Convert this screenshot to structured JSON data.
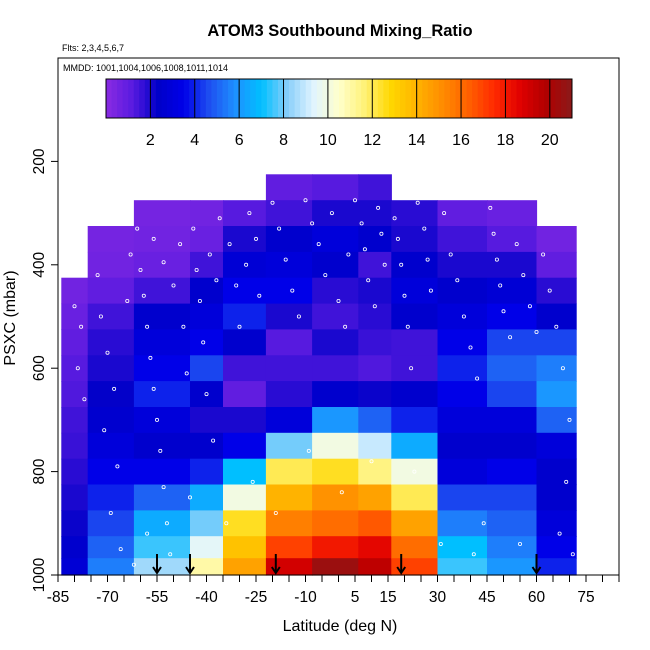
{
  "chart_data": {
    "type": "heatmap",
    "title": "ATOM3 Southbound Mixing_Ratio",
    "subtitle_flights": "Flts: 2,3,4,5,6,7",
    "subtitle_dates": "MMDD: 1001,1004,1006,1008,1011,1014",
    "xlabel": "Latitude (deg N)",
    "ylabel": "PSXC (mbar)",
    "xlim": [
      -85,
      85
    ],
    "ylim": [
      1000,
      0
    ],
    "x_ticks": [
      -85,
      -70,
      -55,
      -40,
      -25,
      -10,
      5,
      15,
      30,
      45,
      60,
      75
    ],
    "y_ticks": [
      200,
      400,
      600,
      800,
      1000
    ],
    "colorbar": {
      "min": 0,
      "max": 21,
      "ticks": [
        2,
        4,
        6,
        8,
        10,
        12,
        14,
        16,
        18,
        20
      ],
      "colors": [
        "#8a2be2",
        "#5a1be0",
        "#0000c8",
        "#0000e8",
        "#1e50f0",
        "#1e90ff",
        "#00bfff",
        "#87cefa",
        "#e0f4ff",
        "#ffffcc",
        "#fff176",
        "#ffd700",
        "#ffb300",
        "#ff8c00",
        "#ff6000",
        "#ff2a00",
        "#e00000",
        "#b00000",
        "#8b1a1a"
      ]
    },
    "pressure_levels": [
      250,
      300,
      350,
      400,
      450,
      500,
      550,
      600,
      650,
      700,
      750,
      800,
      850,
      900,
      950,
      985
    ],
    "segments": [
      {
        "lat_start": -84,
        "lat_end": -76,
        "top": 450,
        "values": [
          0.5,
          0.5,
          0.6,
          0.8,
          1.0,
          1.2,
          1.3,
          1.5,
          1.6,
          1.8,
          2.0,
          2.2,
          2.5,
          2.8
        ]
      },
      {
        "lat_start": -76,
        "lat_end": -62,
        "top": 350,
        "values": [
          0.5,
          0.5,
          0.6,
          1.0,
          1.5,
          1.8,
          2.0,
          2.3,
          2.6,
          3.0,
          3.5,
          4.0,
          4.5,
          5.0,
          5.5
        ]
      },
      {
        "lat_start": -62,
        "lat_end": -45,
        "top": 300,
        "values": [
          0.5,
          0.6,
          0.8,
          1.5,
          2.5,
          3.0,
          3.5,
          4.0,
          3.0,
          2.5,
          3.5,
          5.0,
          6.5,
          7.5,
          8.5
        ]
      },
      {
        "lat_start": -45,
        "lat_end": -35,
        "top": 300,
        "values": [
          0.6,
          0.8,
          1.5,
          2.5,
          3.0,
          3.5,
          4.5,
          2.5,
          2.0,
          2.5,
          4.0,
          6.5,
          8.0,
          9.5,
          11.0
        ]
      },
      {
        "lat_start": -35,
        "lat_end": -22,
        "top": 270,
        "values": [
          0.8,
          1.2,
          2.0,
          2.8,
          3.5,
          4.0,
          2.5,
          1.5,
          1.0,
          2.0,
          3.5,
          7.0,
          10.0,
          12.5,
          13.5,
          14.5
        ]
      },
      {
        "lat_start": -22,
        "lat_end": -8,
        "top": 240,
        "values": [
          1.0,
          1.5,
          2.5,
          3.0,
          3.5,
          2.0,
          1.2,
          1.5,
          1.8,
          3.0,
          8.0,
          12.0,
          14.0,
          15.5,
          17.0,
          19.0
        ]
      },
      {
        "lat_start": -8,
        "lat_end": 6,
        "top": 240,
        "values": [
          1.2,
          2.0,
          3.0,
          2.5,
          1.8,
          1.5,
          2.0,
          1.5,
          2.5,
          6.0,
          10.0,
          12.5,
          15.0,
          16.0,
          18.0,
          20.5
        ]
      },
      {
        "lat_start": 6,
        "lat_end": 16,
        "top": 240,
        "values": [
          1.5,
          2.0,
          2.5,
          1.5,
          2.0,
          1.8,
          1.6,
          1.3,
          2.2,
          5.0,
          9.0,
          11.5,
          14.5,
          16.5,
          18.5,
          19.5
        ]
      },
      {
        "lat_start": 16,
        "lat_end": 30,
        "top": 260,
        "values": [
          1.2,
          1.8,
          2.0,
          2.5,
          3.0,
          2.5,
          1.5,
          1.5,
          2.5,
          4.0,
          6.5,
          10.0,
          12.0,
          14.5,
          16.0,
          17.0
        ]
      },
      {
        "lat_start": 30,
        "lat_end": 45,
        "top": 280,
        "values": [
          1.0,
          1.5,
          2.0,
          2.5,
          3.0,
          3.5,
          4.0,
          3.5,
          3.0,
          2.5,
          3.0,
          4.5,
          5.5,
          7.0,
          7.5
        ]
      },
      {
        "lat_start": 45,
        "lat_end": 60,
        "top": 280,
        "values": [
          0.8,
          1.2,
          2.0,
          2.8,
          3.5,
          4.5,
          5.0,
          4.5,
          3.0,
          2.5,
          3.5,
          4.5,
          5.0,
          5.5,
          6.0
        ]
      },
      {
        "lat_start": 60,
        "lat_end": 72,
        "top": 350,
        "values": [
          0.6,
          1.0,
          1.8,
          2.5,
          4.5,
          5.5,
          6.0,
          5.0,
          3.0,
          2.5,
          2.5,
          3.0,
          3.5,
          4.0
        ]
      }
    ],
    "sample_points": [
      {
        "lat": -80,
        "p": 480
      },
      {
        "lat": -78,
        "p": 520
      },
      {
        "lat": -79,
        "p": 600
      },
      {
        "lat": -77,
        "p": 660
      },
      {
        "lat": -73,
        "p": 420
      },
      {
        "lat": -72,
        "p": 500
      },
      {
        "lat": -70,
        "p": 570
      },
      {
        "lat": -68,
        "p": 640
      },
      {
        "lat": -71,
        "p": 720
      },
      {
        "lat": -67,
        "p": 790
      },
      {
        "lat": -69,
        "p": 880
      },
      {
        "lat": -66,
        "p": 950
      },
      {
        "lat": -64,
        "p": 470
      },
      {
        "lat": -63,
        "p": 380
      },
      {
        "lat": -61,
        "p": 330
      },
      {
        "lat": -60,
        "p": 410
      },
      {
        "lat": -59,
        "p": 460
      },
      {
        "lat": -58,
        "p": 520
      },
      {
        "lat": -57,
        "p": 580
      },
      {
        "lat": -56,
        "p": 640
      },
      {
        "lat": -55,
        "p": 700
      },
      {
        "lat": -54,
        "p": 760
      },
      {
        "lat": -53,
        "p": 830
      },
      {
        "lat": -52,
        "p": 900
      },
      {
        "lat": -51,
        "p": 960
      },
      {
        "lat": -56,
        "p": 350
      },
      {
        "lat": -53,
        "p": 395
      },
      {
        "lat": -50,
        "p": 440
      },
      {
        "lat": -48,
        "p": 360
      },
      {
        "lat": -47,
        "p": 520
      },
      {
        "lat": -46,
        "p": 610
      },
      {
        "lat": -44,
        "p": 330
      },
      {
        "lat": -43,
        "p": 410
      },
      {
        "lat": -42,
        "p": 470
      },
      {
        "lat": -41,
        "p": 550
      },
      {
        "lat": -40,
        "p": 650
      },
      {
        "lat": -39,
        "p": 380
      },
      {
        "lat": -38,
        "p": 740
      },
      {
        "lat": -37,
        "p": 430
      },
      {
        "lat": -36,
        "p": 310
      },
      {
        "lat": -33,
        "p": 360
      },
      {
        "lat": -31,
        "p": 440
      },
      {
        "lat": -30,
        "p": 520
      },
      {
        "lat": -28,
        "p": 400
      },
      {
        "lat": -27,
        "p": 300
      },
      {
        "lat": -25,
        "p": 350
      },
      {
        "lat": -24,
        "p": 460
      },
      {
        "lat": -20,
        "p": 280
      },
      {
        "lat": -18,
        "p": 330
      },
      {
        "lat": -16,
        "p": 390
      },
      {
        "lat": -14,
        "p": 450
      },
      {
        "lat": -12,
        "p": 500
      },
      {
        "lat": -10,
        "p": 275
      },
      {
        "lat": -8,
        "p": 320
      },
      {
        "lat": -6,
        "p": 360
      },
      {
        "lat": -4,
        "p": 420
      },
      {
        "lat": -2,
        "p": 300
      },
      {
        "lat": 0,
        "p": 470
      },
      {
        "lat": 2,
        "p": 520
      },
      {
        "lat": 3,
        "p": 380
      },
      {
        "lat": 5,
        "p": 275
      },
      {
        "lat": 7,
        "p": 320
      },
      {
        "lat": 8,
        "p": 370
      },
      {
        "lat": 9,
        "p": 430
      },
      {
        "lat": 11,
        "p": 480
      },
      {
        "lat": 12,
        "p": 290
      },
      {
        "lat": 13,
        "p": 340
      },
      {
        "lat": 14,
        "p": 400
      },
      {
        "lat": 17,
        "p": 310
      },
      {
        "lat": 18,
        "p": 350
      },
      {
        "lat": 19,
        "p": 400
      },
      {
        "lat": 20,
        "p": 460
      },
      {
        "lat": 21,
        "p": 520
      },
      {
        "lat": 22,
        "p": 600
      },
      {
        "lat": 24,
        "p": 280
      },
      {
        "lat": 26,
        "p": 330
      },
      {
        "lat": 27,
        "p": 390
      },
      {
        "lat": 28,
        "p": 450
      },
      {
        "lat": 32,
        "p": 300
      },
      {
        "lat": 34,
        "p": 380
      },
      {
        "lat": 36,
        "p": 430
      },
      {
        "lat": 38,
        "p": 500
      },
      {
        "lat": 40,
        "p": 560
      },
      {
        "lat": 42,
        "p": 620
      },
      {
        "lat": 46,
        "p": 290
      },
      {
        "lat": 47,
        "p": 340
      },
      {
        "lat": 48,
        "p": 390
      },
      {
        "lat": 49,
        "p": 440
      },
      {
        "lat": 50,
        "p": 490
      },
      {
        "lat": 52,
        "p": 540
      },
      {
        "lat": 54,
        "p": 360
      },
      {
        "lat": 56,
        "p": 420
      },
      {
        "lat": 58,
        "p": 480
      },
      {
        "lat": 60,
        "p": 530
      },
      {
        "lat": 62,
        "p": 380
      },
      {
        "lat": 64,
        "p": 450
      },
      {
        "lat": 66,
        "p": 520
      },
      {
        "lat": 68,
        "p": 600
      },
      {
        "lat": 70,
        "p": 700
      },
      {
        "lat": 69,
        "p": 820
      },
      {
        "lat": 67,
        "p": 920
      },
      {
        "lat": 71,
        "p": 960
      },
      {
        "lat": 44,
        "p": 900
      },
      {
        "lat": 41,
        "p": 960
      },
      {
        "lat": 31,
        "p": 940
      },
      {
        "lat": 23,
        "p": 800
      },
      {
        "lat": 10,
        "p": 780
      },
      {
        "lat": 1,
        "p": 840
      },
      {
        "lat": -9,
        "p": 760
      },
      {
        "lat": -19,
        "p": 880
      },
      {
        "lat": -26,
        "p": 820
      },
      {
        "lat": -34,
        "p": 900
      },
      {
        "lat": -45,
        "p": 850
      },
      {
        "lat": -58,
        "p": 920
      },
      {
        "lat": -62,
        "p": 980
      },
      {
        "lat": 55,
        "p": 940
      }
    ],
    "flight_markers": [
      -55,
      -45,
      -19,
      19,
      60
    ],
    "marker_bottom_level": 1000
  }
}
